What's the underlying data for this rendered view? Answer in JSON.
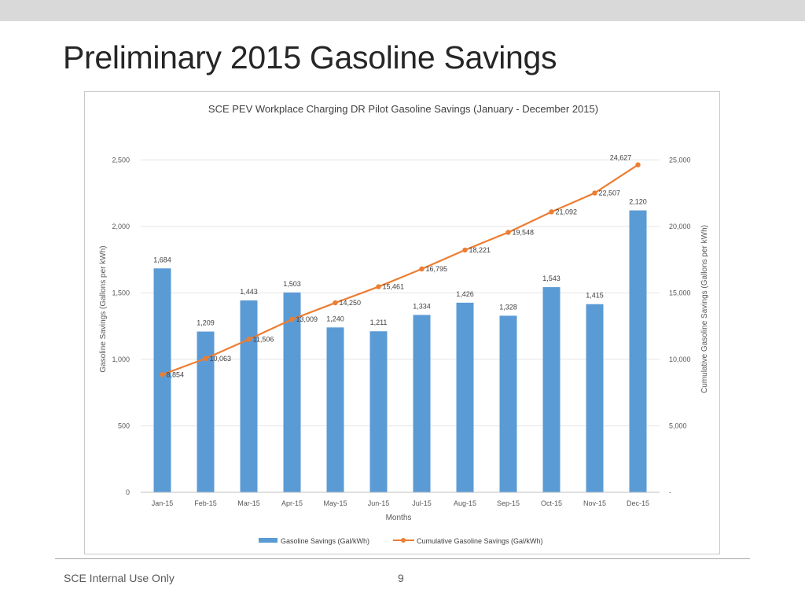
{
  "slide": {
    "title": "Preliminary 2015 Gasoline Savings",
    "footer": "SCE Internal Use Only",
    "page_number": "9"
  },
  "colors": {
    "bar": "#5b9bd5",
    "line": "#ed7d31",
    "grid": "#e4e4e4",
    "title_band": "#d9d9d9"
  },
  "chart_data": {
    "type": "bar",
    "title": "SCE PEV Workplace Charging DR Pilot Gasoline Savings (January - December 2015)",
    "xlabel": "Months",
    "ylabel": "Gasoline Savings (Gallons per kWh)",
    "y2label": "Cumulative Gasoline Savings (Gallons per kWh)",
    "categories": [
      "Jan-15",
      "Feb-15",
      "Mar-15",
      "Apr-15",
      "May-15",
      "Jun-15",
      "Jul-15",
      "Aug-15",
      "Sep-15",
      "Oct-15",
      "Nov-15",
      "Dec-15"
    ],
    "ylim": [
      0,
      2750
    ],
    "y2lim": [
      0,
      27500
    ],
    "yticks": [
      0,
      500,
      1000,
      1500,
      2000,
      2500
    ],
    "ytick_labels": [
      "0",
      "500",
      "1,000",
      "1,500",
      "2,000",
      "2,500"
    ],
    "y2ticks": [
      0,
      5000,
      10000,
      15000,
      20000,
      25000
    ],
    "y2tick_labels": [
      "-",
      "5,000",
      "10,000",
      "15,000",
      "20,000",
      "25,000"
    ],
    "grid": true,
    "legend_position": "bottom",
    "series": [
      {
        "name": "Gasoline Savings (Gal/kWh)",
        "type": "bar",
        "axis": "left",
        "values": [
          1684,
          1209,
          1443,
          1503,
          1240,
          1211,
          1334,
          1426,
          1328,
          1543,
          1415,
          2120
        ],
        "labels": [
          "1,684",
          "1,209",
          "1,443",
          "1,503",
          "1,240",
          "1,211",
          "1,334",
          "1,426",
          "1,328",
          "1,543",
          "1,415",
          "2,120"
        ]
      },
      {
        "name": "Cumulative Gasoline Savings (Gal/kWh)",
        "type": "line",
        "axis": "right",
        "values": [
          8854,
          10063,
          11506,
          13009,
          14250,
          15461,
          16795,
          18221,
          19548,
          21092,
          22507,
          24627
        ],
        "labels": [
          "8,854",
          "10,063",
          "11,506",
          "13,009",
          "14,250",
          "15,461",
          "16,795",
          "18,221",
          "19,548",
          "21,092",
          "22,507",
          "24,627"
        ]
      }
    ]
  }
}
